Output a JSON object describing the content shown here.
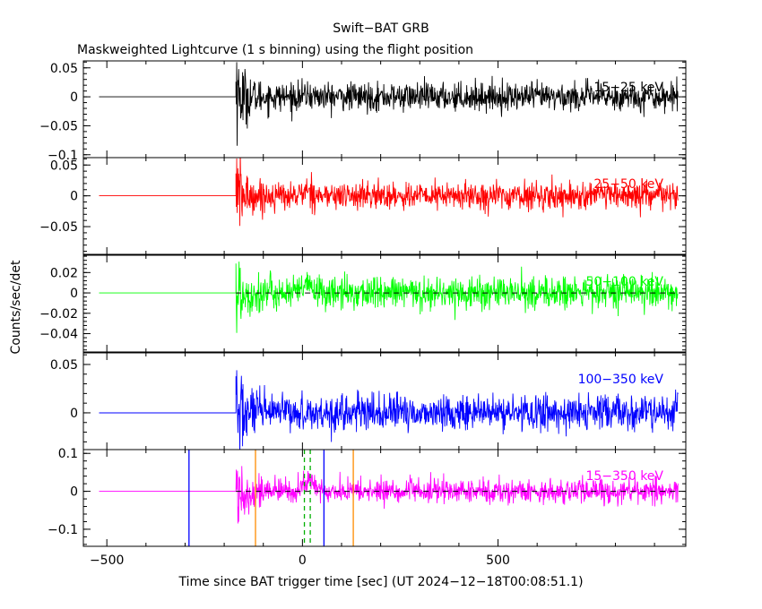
{
  "chart_data": {
    "type": "line",
    "title": "Swift−BAT GRB",
    "subtitle": "Maskweighted Lightcurve (1 s binning) using the flight position",
    "xlabel": "Time since BAT trigger time [sec] (UT 2024−12−18T00:08:51.1)",
    "ylabel": "Counts/sec/det",
    "xlim": [
      -560,
      980
    ],
    "xticks": [
      -500,
      0,
      500
    ],
    "xtick_labels": [
      "−500",
      "0",
      "500"
    ],
    "data_start": -520,
    "data_end": 960,
    "signal_onset": -170,
    "panels": [
      {
        "name": "15-25",
        "label": "15−25 keV",
        "color": "#000000",
        "ylim": [
          -0.105,
          0.062
        ],
        "yticks": [
          0.05,
          0,
          -0.05,
          -0.1
        ],
        "ytick_labels": [
          "0.05",
          "0",
          "−0.05",
          "−0.1"
        ],
        "noise": 0.012,
        "dashed_zero": false
      },
      {
        "name": "25-50",
        "label": "25−50 keV",
        "color": "#ff0000",
        "ylim": [
          -0.095,
          0.062
        ],
        "yticks": [
          0.05,
          0,
          -0.05
        ],
        "ytick_labels": [
          "0.05",
          "0",
          "−0.05"
        ],
        "noise": 0.011,
        "dashed_zero": false
      },
      {
        "name": "50-100",
        "label": "50−100 keV",
        "color": "#00ff00",
        "ylim": [
          -0.058,
          0.037
        ],
        "yticks": [
          0.02,
          0,
          -0.02,
          -0.04
        ],
        "ytick_labels": [
          "0.02",
          "0",
          "−0.02",
          "−0.04"
        ],
        "noise": 0.008,
        "dashed_zero": true
      },
      {
        "name": "100-350",
        "label": "100−350 keV",
        "color": "#0000ff",
        "ylim": [
          -0.038,
          0.062
        ],
        "yticks": [
          0.05,
          0
        ],
        "ytick_labels": [
          "0.05",
          "0"
        ],
        "noise": 0.009,
        "dashed_zero": false
      },
      {
        "name": "15-350",
        "label": "15−350 keV",
        "color": "#ff00ff",
        "ylim": [
          -0.145,
          0.11
        ],
        "yticks": [
          0.1,
          0,
          -0.1
        ],
        "ytick_labels": [
          "0.1",
          "0",
          "−0.1"
        ],
        "noise": 0.016,
        "dashed_zero": true
      }
    ],
    "markers": [
      {
        "x": -290,
        "color": "#0000ff",
        "style": "solid"
      },
      {
        "x": -120,
        "color": "#ff8c00",
        "style": "solid"
      },
      {
        "x": 5,
        "color": "#00b000",
        "style": "dashed"
      },
      {
        "x": 20,
        "color": "#00b000",
        "style": "dashed"
      },
      {
        "x": 55,
        "color": "#0000ff",
        "style": "solid"
      },
      {
        "x": 130,
        "color": "#ff8c00",
        "style": "solid"
      }
    ]
  }
}
